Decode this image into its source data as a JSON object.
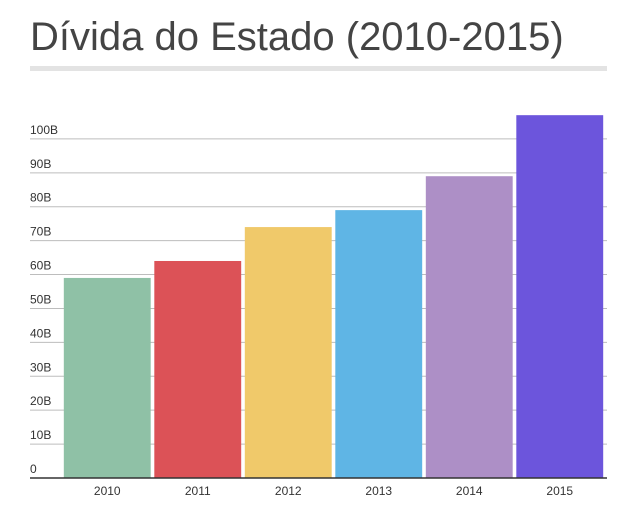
{
  "chart_data": {
    "type": "bar",
    "title": "Dívida do Estado (2010-2015)",
    "categories": [
      "2010",
      "2011",
      "2012",
      "2013",
      "2014",
      "2015"
    ],
    "series": [
      {
        "name": null,
        "values": [
          59,
          64,
          74,
          79,
          89,
          107
        ],
        "colors": [
          "#8fc1a6",
          "#dc5257",
          "#f0c96a",
          "#5fb5e5",
          "#ad8fc6",
          "#6c55dc"
        ]
      }
    ],
    "ylim": [
      0,
      110
    ],
    "yticks": [
      0,
      {
        "value": 10,
        "label": "10B"
      },
      {
        "value": 20,
        "label": "20B"
      },
      {
        "value": 30,
        "label": "30B"
      },
      {
        "value": 40,
        "label": "40B"
      },
      {
        "value": 50,
        "label": "50B"
      },
      {
        "value": 60,
        "label": "60B"
      },
      {
        "value": 70,
        "label": "70B"
      },
      {
        "value": 80,
        "label": "80B"
      },
      {
        "value": 90,
        "label": "90B"
      },
      {
        "value": 100,
        "label": "100B"
      }
    ],
    "grid": true
  }
}
